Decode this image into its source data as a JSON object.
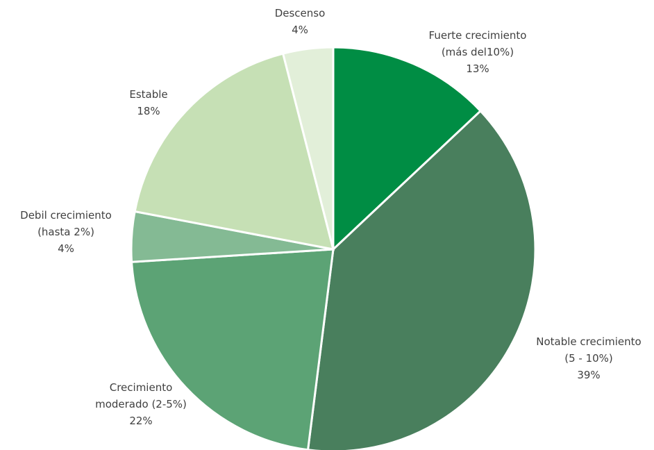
{
  "chart_data": {
    "type": "pie",
    "title": "",
    "start_angle_deg": 0,
    "direction": "clockwise",
    "slices": [
      {
        "label_lines": [
          "Fuerte crecimiento",
          "(más del10%)"
        ],
        "percent_label": "13%",
        "value": 13,
        "color": "#008d44"
      },
      {
        "label_lines": [
          "Notable crecimiento",
          "(5 - 10%)"
        ],
        "percent_label": "39%",
        "value": 39,
        "color": "#497f5d"
      },
      {
        "label_lines": [
          "Crecimiento",
          "moderado (2-5%)"
        ],
        "percent_label": "22%",
        "value": 22,
        "color": "#5ca375"
      },
      {
        "label_lines": [
          "Debil crecimiento",
          "(hasta 2%)"
        ],
        "percent_label": "4%",
        "value": 4,
        "color": "#84ba94"
      },
      {
        "label_lines": [
          "Estable"
        ],
        "percent_label": "18%",
        "value": 18,
        "color": "#c6e0b5"
      },
      {
        "label_lines": [
          "Descenso"
        ],
        "percent_label": "4%",
        "value": 4,
        "color": "#e2efd9"
      }
    ]
  }
}
